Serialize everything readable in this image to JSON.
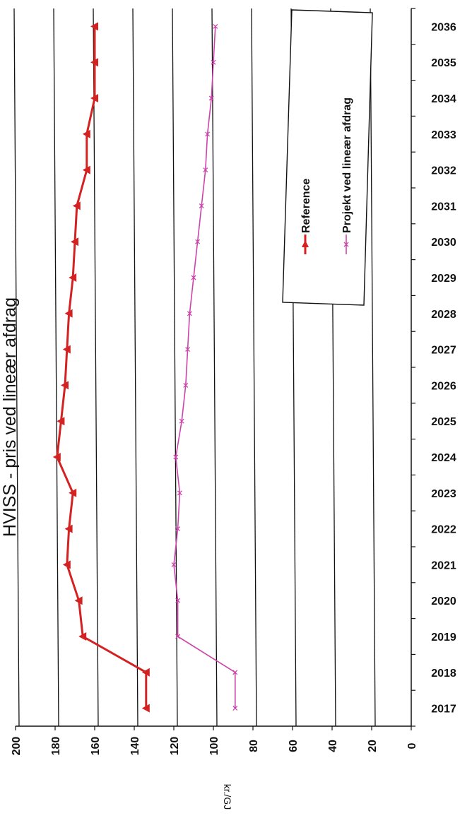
{
  "chart_data": {
    "type": "line",
    "title": "HVISS - pris ved lineær afdrag",
    "xlabel": "",
    "ylabel": "kr./GJ",
    "ylim": [
      0,
      200
    ],
    "y_ticks": [
      0,
      20,
      40,
      60,
      80,
      100,
      120,
      140,
      160,
      180,
      200
    ],
    "grid": true,
    "legend_position": "top-right",
    "orientation": "rotated-90",
    "categories": [
      "2017",
      "2018",
      "2019",
      "2020",
      "2021",
      "2022",
      "2023",
      "2024",
      "2025",
      "2026",
      "2027",
      "2028",
      "2029",
      "2030",
      "2031",
      "2032",
      "2033",
      "2034",
      "2035",
      "2036"
    ],
    "series": [
      {
        "name": "Reference",
        "color": "#d42121",
        "marker": "triangle",
        "values": [
          134,
          134,
          166,
          168,
          174,
          173,
          171,
          179,
          177,
          175,
          174,
          173,
          171,
          170,
          169,
          164,
          164,
          160,
          160,
          160
        ]
      },
      {
        "name": "Projekt ved lineær afdrag",
        "color": "#cc44aa",
        "marker": "cross",
        "values": [
          89,
          89,
          118,
          118,
          120,
          118,
          117,
          119,
          116,
          114,
          113,
          112,
          110,
          108,
          106,
          104,
          103,
          101,
          100,
          99
        ]
      }
    ]
  }
}
